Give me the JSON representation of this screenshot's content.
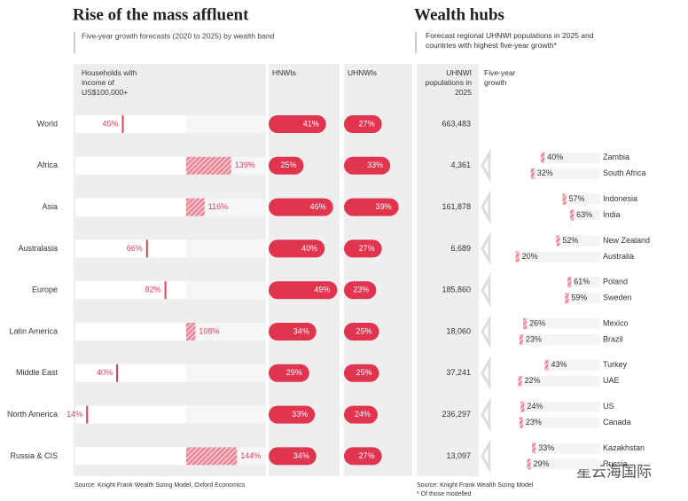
{
  "chart_data": [
    {
      "type": "bar",
      "title": "Rise of the mass affluent",
      "subtitle": "Five-year growth forecasts (2020 to 2025) by wealth band",
      "categories": [
        "World",
        "Africa",
        "Asia",
        "Australasia",
        "Europe",
        "Latin America",
        "Middle East",
        "North America",
        "Russia & CIS"
      ],
      "series": [
        {
          "name": "Households with income of US$100,000+",
          "color": "#e0405a",
          "values": [
            45,
            139,
            116,
            66,
            82,
            108,
            40,
            14,
            144
          ],
          "value_labels": [
            "45%",
            "139%",
            "116%",
            "66%",
            "82%",
            "108%",
            "40%",
            "14%",
            "144%"
          ]
        },
        {
          "name": "HNWIs",
          "color": "#e0344f",
          "values": [
            41,
            25,
            46,
            40,
            49,
            34,
            29,
            33,
            34
          ],
          "value_labels": [
            "41%",
            "25%",
            "46%",
            "40%",
            "49%",
            "34%",
            "29%",
            "33%",
            "34%"
          ]
        },
        {
          "name": "UHNWIs",
          "color": "#e0344f",
          "values": [
            27,
            33,
            39,
            27,
            23,
            25,
            25,
            24,
            27
          ],
          "value_labels": [
            "27%",
            "33%",
            "39%",
            "27%",
            "23%",
            "25%",
            "25%",
            "24%",
            "27%"
          ]
        }
      ],
      "source": "Source: Knight Frank Wealth Sizing Model, Oxford Economics"
    },
    {
      "type": "country-bar",
      "title": "Wealth hubs",
      "subtitle": "Forecast regional UHNWI populations in 2025 and countries with highest five-year growth*",
      "population_header": "UHNWI populations in 2025",
      "growth_header": "Five-year growth",
      "populations": [
        663483,
        4361,
        161878,
        6689,
        185860,
        18060,
        37241,
        236297,
        13097
      ],
      "population_labels": [
        "663,483",
        "4,361",
        "161,878",
        "6,689",
        "185,860",
        "18,060",
        "37,241",
        "236,297",
        "13,097"
      ],
      "countries": [
        [],
        [
          {
            "name": "Zambia",
            "value": 40,
            "label": "40%"
          },
          {
            "name": "South Africa",
            "value": 32,
            "label": "32%"
          }
        ],
        [
          {
            "name": "Indonesia",
            "value": 57,
            "label": "57%"
          },
          {
            "name": "India",
            "value": 63,
            "label": "63%"
          }
        ],
        [
          {
            "name": "New Zealand",
            "value": 52,
            "label": "52%"
          },
          {
            "name": "Australia",
            "value": 20,
            "label": "20%"
          }
        ],
        [
          {
            "name": "Poland",
            "value": 61,
            "label": "61%"
          },
          {
            "name": "Sweden",
            "value": 59,
            "label": "59%"
          }
        ],
        [
          {
            "name": "Mexico",
            "value": 26,
            "label": "26%"
          },
          {
            "name": "Brazil",
            "value": 23,
            "label": "23%"
          }
        ],
        [
          {
            "name": "Turkey",
            "value": 43,
            "label": "43%"
          },
          {
            "name": "UAE",
            "value": 22,
            "label": "22%"
          }
        ],
        [
          {
            "name": "US",
            "value": 24,
            "label": "24%"
          },
          {
            "name": "Canada",
            "value": 23,
            "label": "23%"
          }
        ],
        [
          {
            "name": "Kazakhstan",
            "value": 33,
            "label": "33%"
          },
          {
            "name": "Russia",
            "value": 29,
            "label": "29%"
          }
        ]
      ],
      "source": "Source: Knight Frank Wealth Sizing Model",
      "footnote": "* Of those modelled",
      "watermark": "星云海国际"
    }
  ]
}
